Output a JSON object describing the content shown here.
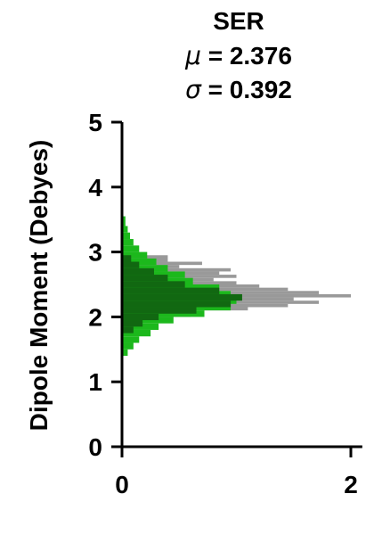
{
  "chart_data": {
    "type": "histogram-horizontal",
    "title": "SER",
    "stats": [
      {
        "symbol": "μ",
        "value_text": "= 2.376"
      },
      {
        "symbol": "σ",
        "value_text": "= 0.392"
      }
    ],
    "ylabel": "Dipole Moment (Debyes)",
    "xlabel": "",
    "xlim": [
      0,
      2.1
    ],
    "ylim": [
      0,
      5
    ],
    "xticks": [
      0,
      2
    ],
    "yticks": [
      0,
      1,
      2,
      3,
      4,
      5
    ],
    "grid": false,
    "series": [
      {
        "color": "#999999",
        "bins": [
          {
            "y0": 2.0,
            "y1": 2.1,
            "x": 0.6
          },
          {
            "y0": 2.1,
            "y1": 2.15,
            "x": 1.1
          },
          {
            "y0": 2.15,
            "y1": 2.2,
            "x": 1.45
          },
          {
            "y0": 2.2,
            "y1": 2.25,
            "x": 1.72
          },
          {
            "y0": 2.25,
            "y1": 2.3,
            "x": 1.5
          },
          {
            "y0": 2.3,
            "y1": 2.35,
            "x": 2.0
          },
          {
            "y0": 2.35,
            "y1": 2.4,
            "x": 1.72
          },
          {
            "y0": 2.4,
            "y1": 2.45,
            "x": 1.45
          },
          {
            "y0": 2.45,
            "y1": 2.5,
            "x": 1.2
          },
          {
            "y0": 2.5,
            "y1": 2.55,
            "x": 1.0
          },
          {
            "y0": 2.55,
            "y1": 2.6,
            "x": 0.8
          },
          {
            "y0": 2.6,
            "y1": 2.65,
            "x": 1.0
          },
          {
            "y0": 2.65,
            "y1": 2.7,
            "x": 0.85
          },
          {
            "y0": 2.7,
            "y1": 2.75,
            "x": 0.95
          },
          {
            "y0": 2.75,
            "y1": 2.8,
            "x": 0.5
          },
          {
            "y0": 2.8,
            "y1": 2.85,
            "x": 0.7
          },
          {
            "y0": 2.85,
            "y1": 2.95,
            "x": 0.4
          }
        ]
      },
      {
        "color": "#1cb81c",
        "bins": [
          {
            "y0": 1.4,
            "y1": 1.5,
            "x": 0.05
          },
          {
            "y0": 1.5,
            "y1": 1.6,
            "x": 0.1
          },
          {
            "y0": 1.6,
            "y1": 1.7,
            "x": 0.15
          },
          {
            "y0": 1.7,
            "y1": 1.8,
            "x": 0.25
          },
          {
            "y0": 1.8,
            "y1": 1.9,
            "x": 0.32
          },
          {
            "y0": 1.9,
            "y1": 2.0,
            "x": 0.45
          },
          {
            "y0": 2.0,
            "y1": 2.1,
            "x": 0.72
          },
          {
            "y0": 2.1,
            "y1": 2.2,
            "x": 0.95
          },
          {
            "y0": 2.2,
            "y1": 2.3,
            "x": 1.0
          },
          {
            "y0": 2.3,
            "y1": 2.4,
            "x": 0.95
          },
          {
            "y0": 2.4,
            "y1": 2.5,
            "x": 0.85
          },
          {
            "y0": 2.5,
            "y1": 2.6,
            "x": 0.62
          },
          {
            "y0": 2.6,
            "y1": 2.7,
            "x": 0.55
          },
          {
            "y0": 2.7,
            "y1": 2.8,
            "x": 0.4
          },
          {
            "y0": 2.8,
            "y1": 2.9,
            "x": 0.3
          },
          {
            "y0": 2.9,
            "y1": 3.0,
            "x": 0.22
          },
          {
            "y0": 3.0,
            "y1": 3.1,
            "x": 0.15
          },
          {
            "y0": 3.1,
            "y1": 3.2,
            "x": 0.1
          },
          {
            "y0": 3.2,
            "y1": 3.3,
            "x": 0.07
          },
          {
            "y0": 3.3,
            "y1": 3.4,
            "x": 0.05
          },
          {
            "y0": 3.4,
            "y1": 3.55,
            "x": 0.03
          }
        ]
      },
      {
        "color": "#116811",
        "bins": [
          {
            "y0": 1.75,
            "y1": 1.85,
            "x": 0.1
          },
          {
            "y0": 1.85,
            "y1": 1.95,
            "x": 0.18
          },
          {
            "y0": 1.95,
            "y1": 2.05,
            "x": 0.32
          },
          {
            "y0": 2.05,
            "y1": 2.15,
            "x": 0.65
          },
          {
            "y0": 2.15,
            "y1": 2.25,
            "x": 0.95
          },
          {
            "y0": 2.25,
            "y1": 2.35,
            "x": 1.05
          },
          {
            "y0": 2.35,
            "y1": 2.45,
            "x": 0.85
          },
          {
            "y0": 2.45,
            "y1": 2.55,
            "x": 0.55
          },
          {
            "y0": 2.55,
            "y1": 2.65,
            "x": 0.4
          },
          {
            "y0": 2.65,
            "y1": 2.75,
            "x": 0.28
          },
          {
            "y0": 2.75,
            "y1": 2.85,
            "x": 0.15
          },
          {
            "y0": 2.85,
            "y1": 2.95,
            "x": 0.08
          }
        ]
      }
    ]
  }
}
